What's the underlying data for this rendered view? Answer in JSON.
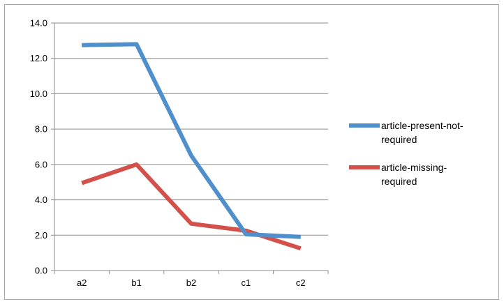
{
  "chart_data": {
    "type": "line",
    "title": "",
    "xlabel": "",
    "ylabel": "",
    "categories": [
      "a2",
      "b1",
      "b2",
      "c1",
      "c2"
    ],
    "y_ticks": [
      "0.0",
      "2.0",
      "4.0",
      "6.0",
      "8.0",
      "10.0",
      "12.0",
      "14.0"
    ],
    "ylim": [
      0,
      14
    ],
    "grid": "horizontal",
    "legend_position": "right",
    "series": [
      {
        "name_lines": [
          "article-present-not-",
          "required"
        ],
        "color": "#4f8fcb",
        "values": [
          12.75,
          12.8,
          6.5,
          2.05,
          1.9
        ]
      },
      {
        "name_lines": [
          "article-missing-",
          "required"
        ],
        "color": "#d3504b",
        "values": [
          4.95,
          6.0,
          2.65,
          2.25,
          1.25
        ]
      }
    ]
  }
}
